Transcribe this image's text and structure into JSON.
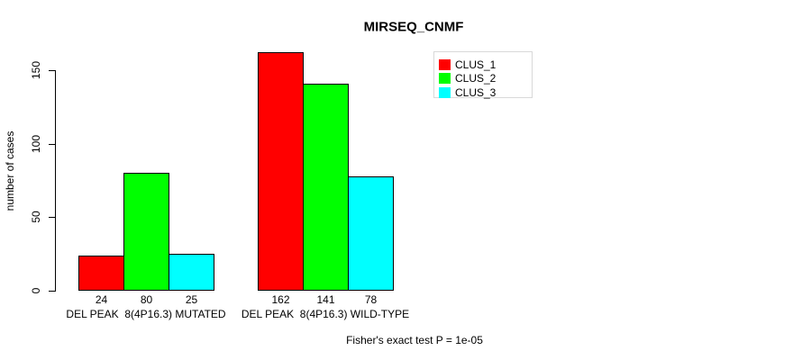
{
  "chart_data": {
    "type": "bar",
    "title": "MIRSEQ_CNMF",
    "xlabel": "",
    "ylabel": "number of cases",
    "ylim": [
      0,
      150
    ],
    "yticks": [
      0,
      50,
      100,
      150
    ],
    "grid": false,
    "legend_position": "top-right",
    "categories": [
      "DEL PEAK  8(4P16.3) MUTATED",
      "DEL PEAK  8(4P16.3) WILD-TYPE"
    ],
    "series": [
      {
        "name": "CLUS_1",
        "color": "#ff0000",
        "values": [
          24,
          162
        ]
      },
      {
        "name": "CLUS_2",
        "color": "#00ff00",
        "values": [
          80,
          141
        ]
      },
      {
        "name": "CLUS_3",
        "color": "#00ffff",
        "values": [
          25,
          78
        ]
      }
    ],
    "bar_value_labels": [
      [
        24,
        80,
        25
      ],
      [
        162,
        141,
        78
      ]
    ],
    "footnote": "Fisher's exact test P = 1e-05"
  },
  "colors": {
    "axis": "#000000",
    "bar_border": "#000000",
    "legend_box_border": "#d9d9d9",
    "background": "#ffffff"
  }
}
